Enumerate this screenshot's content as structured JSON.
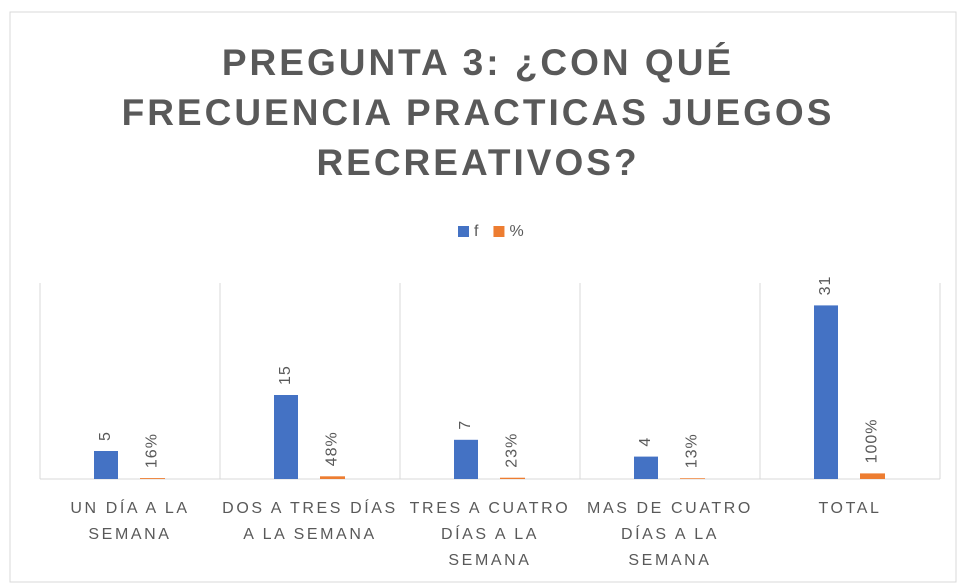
{
  "chart_data": {
    "type": "bar",
    "title": "PREGUNTA 3: ¿CON QUÉ FRECUENCIA PRACTICAS JUEGOS RECREATIVOS?",
    "categories": [
      "UN DÍA A LA SEMANA",
      "DOS A TRES DÍAS A LA SEMANA",
      "TRES A CUATRO DÍAS A LA SEMANA",
      "MAS DE CUATRO DÍAS A LA SEMANA",
      "TOTAL"
    ],
    "series": [
      {
        "name": "f",
        "color": "#4472c4",
        "values": [
          5,
          15,
          7,
          4,
          31
        ]
      },
      {
        "name": "%",
        "color": "#ed7d31",
        "values": [
          0.16,
          0.48,
          0.23,
          0.13,
          1.0
        ],
        "value_labels": [
          "16%",
          "48%",
          "23%",
          "13%",
          "100%"
        ]
      }
    ],
    "ylim": [
      0,
      35
    ],
    "legend": "top"
  }
}
